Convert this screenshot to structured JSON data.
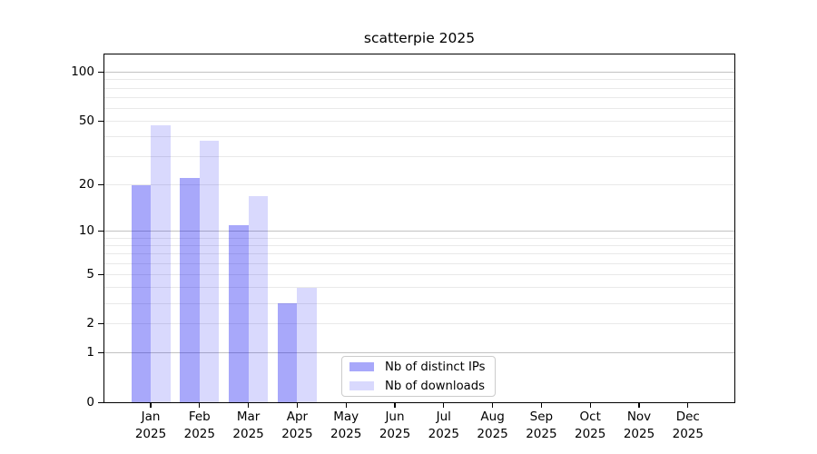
{
  "figure": {
    "title": "scatterpie 2025"
  },
  "chart_data": {
    "type": "bar",
    "title": "scatterpie 2025",
    "yscale": "log1p",
    "grid": true,
    "categories": [
      "Jan",
      "Feb",
      "Mar",
      "Apr",
      "May",
      "Jun",
      "Jul",
      "Aug",
      "Sep",
      "Oct",
      "Nov",
      "Dec"
    ],
    "year": "2025",
    "series": [
      {
        "name": "Nb of distinct IPs",
        "color": "rgba(0,0,240,0.34)",
        "values": [
          20,
          22,
          11,
          3,
          0,
          0,
          0,
          0,
          0,
          0,
          0,
          0
        ]
      },
      {
        "name": "Nb of downloads",
        "color": "rgba(0,0,240,0.15)",
        "values": [
          47,
          38,
          17,
          4,
          0,
          0,
          0,
          0,
          0,
          0,
          0,
          0
        ]
      }
    ],
    "y_axis": {
      "tick_values": [
        100,
        50,
        20,
        10,
        5,
        2,
        1,
        0
      ],
      "tick_labels": [
        "100",
        "50",
        "20",
        "10",
        "5",
        "2",
        "1",
        "0"
      ],
      "major_gridlines": [
        1,
        10,
        100
      ],
      "minor_gridlines": [
        2,
        3,
        4,
        5,
        6,
        7,
        8,
        9,
        20,
        30,
        40,
        50,
        60,
        70,
        80,
        90
      ],
      "ylim": [
        0,
        130
      ]
    },
    "legend": {
      "location": "lower center",
      "entries": [
        "Nb of distinct IPs",
        "Nb of downloads"
      ]
    }
  },
  "colors": {
    "bar_distinct_ips": "rgba(0,0,240,0.34)",
    "bar_downloads": "rgba(0,0,240,0.15)",
    "major_grid": "#c2c2c2",
    "minor_grid": "#e9e9e9",
    "spine": "#000000",
    "text": "#000000",
    "legend_border": "#cccccc",
    "background": "#ffffff"
  }
}
